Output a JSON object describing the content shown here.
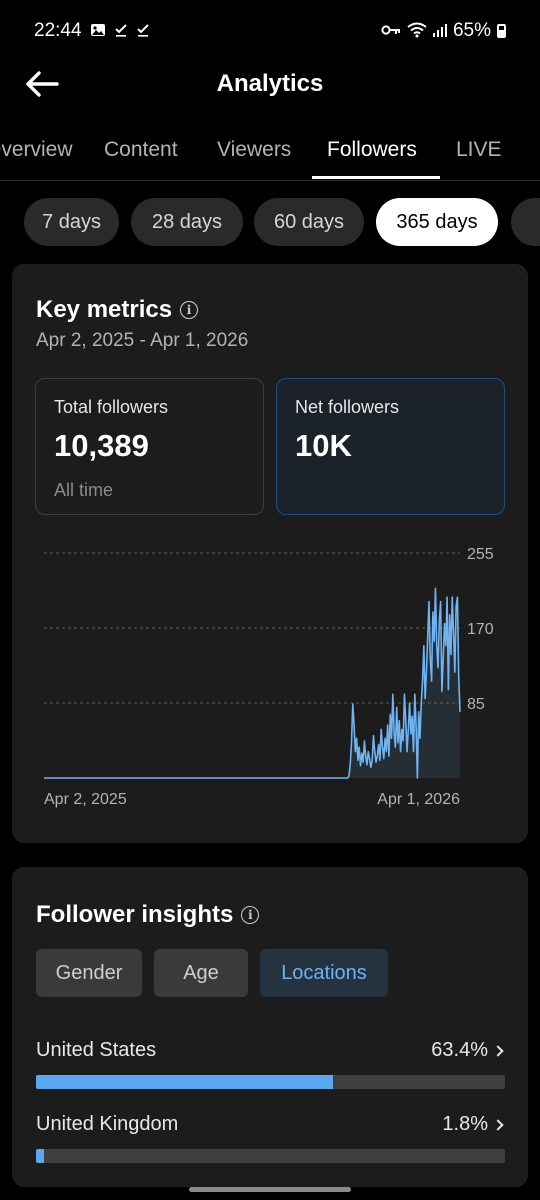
{
  "status_bar": {
    "time": "22:44",
    "battery": "65%",
    "icons": [
      "image-icon",
      "check-icon",
      "check-icon",
      "key-icon",
      "wifi-icon",
      "signal-icon",
      "battery-icon"
    ]
  },
  "header": {
    "title": "Analytics",
    "back_icon": "arrow-left-icon"
  },
  "tabs": [
    {
      "label": "Overview",
      "active": false
    },
    {
      "label": "Content",
      "active": false
    },
    {
      "label": "Viewers",
      "active": false
    },
    {
      "label": "Followers",
      "active": true
    },
    {
      "label": "LIVE",
      "active": false
    }
  ],
  "ranges": [
    {
      "label": "7 days",
      "active": false
    },
    {
      "label": "28 days",
      "active": false
    },
    {
      "label": "60 days",
      "active": false
    },
    {
      "label": "365 days",
      "active": true
    }
  ],
  "key_metrics": {
    "title": "Key metrics",
    "date_range": "Apr 2, 2025 - Apr 1, 2026",
    "total": {
      "label": "Total followers",
      "value": "10,389",
      "sub": "All time"
    },
    "net": {
      "label": "Net followers",
      "value": "10K"
    }
  },
  "chart_data": {
    "type": "line",
    "x_start": "Apr 2, 2025",
    "x_end": "Apr 1, 2026",
    "y_ticks": [
      85,
      170,
      255
    ],
    "ylim": [
      0,
      255
    ],
    "color": "#6fb3f0",
    "values": [
      0,
      0,
      0,
      0,
      0,
      0,
      0,
      0,
      0,
      0,
      0,
      0,
      0,
      0,
      0,
      0,
      0,
      0,
      0,
      0,
      0,
      0,
      0,
      0,
      0,
      0,
      0,
      0,
      0,
      0,
      0,
      0,
      0,
      0,
      0,
      0,
      0,
      0,
      0,
      0,
      0,
      0,
      0,
      0,
      0,
      0,
      0,
      0,
      0,
      0,
      0,
      0,
      0,
      0,
      0,
      0,
      0,
      0,
      0,
      0,
      0,
      0,
      0,
      0,
      0,
      0,
      0,
      0,
      0,
      0,
      0,
      0,
      0,
      0,
      0,
      0,
      0,
      0,
      0,
      0,
      0,
      0,
      0,
      0,
      0,
      0,
      0,
      0,
      0,
      0,
      0,
      0,
      0,
      0,
      0,
      0,
      0,
      0,
      0,
      0,
      0,
      0,
      0,
      0,
      0,
      0,
      0,
      0,
      0,
      0,
      0,
      0,
      0,
      0,
      0,
      0,
      0,
      0,
      0,
      0,
      0,
      0,
      0,
      0,
      0,
      0,
      0,
      0,
      0,
      0,
      0,
      0,
      0,
      0,
      0,
      0,
      0,
      0,
      0,
      0,
      0,
      0,
      0,
      0,
      0,
      0,
      0,
      0,
      0,
      0,
      0,
      0,
      0,
      0,
      0,
      0,
      0,
      0,
      0,
      0,
      0,
      0,
      0,
      0,
      0,
      0,
      0,
      0,
      0,
      0,
      0,
      0,
      0,
      0,
      0,
      0,
      0,
      0,
      0,
      0,
      0,
      0,
      0,
      0,
      0,
      0,
      0,
      0,
      0,
      0,
      0,
      0,
      0,
      0,
      0,
      0,
      0,
      0,
      0,
      0,
      0,
      0,
      0,
      0,
      0,
      0,
      0,
      0,
      0,
      0,
      0,
      0,
      0,
      0,
      0,
      0,
      0,
      0,
      0,
      0,
      0,
      0,
      0,
      0,
      0,
      0,
      0,
      0,
      0,
      0,
      0,
      0,
      0,
      0,
      0,
      0,
      2,
      15,
      40,
      84,
      60,
      30,
      45,
      20,
      35,
      14,
      28,
      18,
      42,
      25,
      15,
      30,
      22,
      12,
      20,
      48,
      30,
      18,
      25,
      38,
      20,
      55,
      35,
      22,
      45,
      30,
      60,
      25,
      72,
      45,
      95,
      50,
      35,
      80,
      40,
      65,
      30,
      55,
      42,
      95,
      65,
      30,
      55,
      85,
      50,
      70,
      30,
      95,
      60,
      0,
      75,
      45,
      85,
      110,
      150,
      90,
      120,
      160,
      200,
      135,
      110,
      188,
      155,
      215,
      150,
      125,
      178,
      200,
      98,
      135,
      175,
      150,
      205,
      100,
      185,
      140,
      205,
      165,
      120,
      195,
      205,
      115,
      75
    ]
  },
  "insights": {
    "title": "Follower insights",
    "filters": [
      {
        "label": "Gender",
        "active": false
      },
      {
        "label": "Age",
        "active": false
      },
      {
        "label": "Locations",
        "active": true
      }
    ],
    "locations": [
      {
        "name": "United States",
        "percent": "63.4%",
        "share": 0.634
      },
      {
        "name": "United Kingdom",
        "percent": "1.8%",
        "share": 0.018
      }
    ]
  }
}
